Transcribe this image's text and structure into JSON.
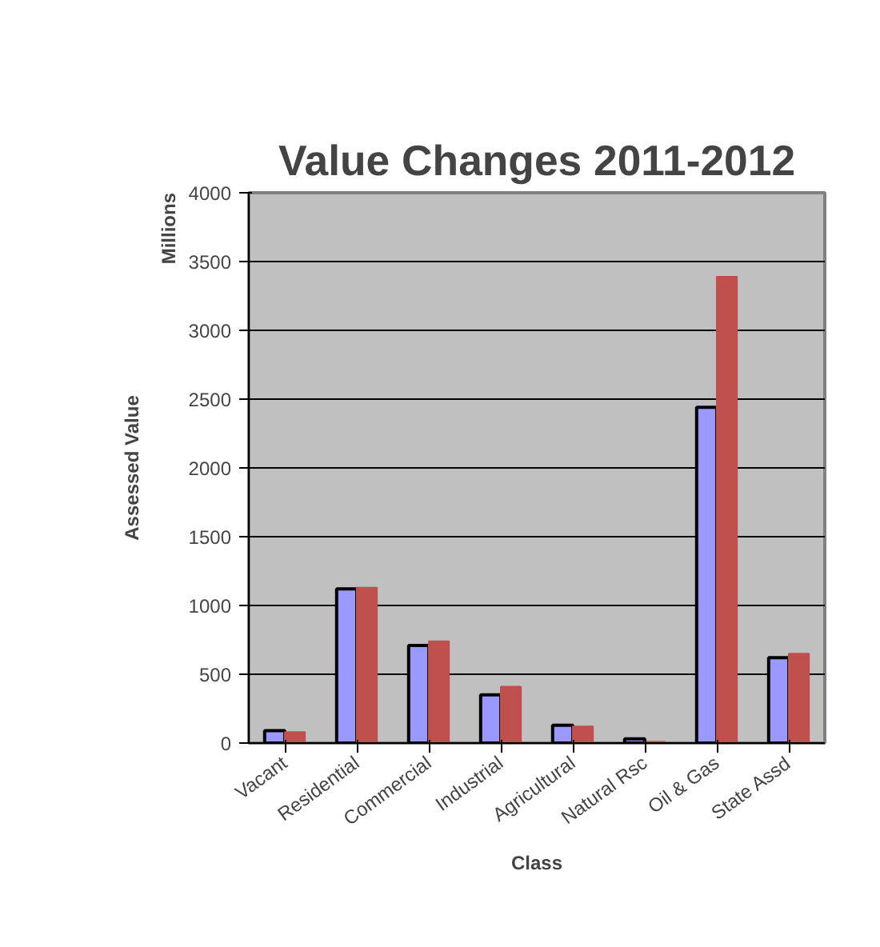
{
  "chart_data": {
    "type": "bar",
    "title": "Value Changes 2011-2012",
    "xlabel": "Class",
    "ylabel": "Assessed Value",
    "annotations": [
      "Millions"
    ],
    "categories": [
      "Vacant",
      "Residential",
      "Commercial",
      "Industrial",
      "Agricultural",
      "Natural Rsc",
      "Oil & Gas",
      "State Assd"
    ],
    "series": [
      {
        "color": "#9999ff",
        "values": [
          90,
          1120,
          710,
          350,
          130,
          30,
          2440,
          620
        ]
      },
      {
        "color": "#c0504d",
        "values": [
          80,
          1130,
          740,
          410,
          120,
          10,
          3390,
          650
        ]
      }
    ],
    "ylim": [
      0,
      4000
    ],
    "yticks": [
      0,
      500,
      1000,
      1500,
      2000,
      2500,
      3000,
      3500,
      4000
    ],
    "grid": "y"
  }
}
